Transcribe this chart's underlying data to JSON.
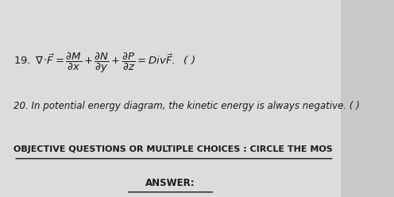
{
  "bg_color": "#c8c8c8",
  "paper_color": "#dcdcdc",
  "text_color": "#1a1a1a",
  "line1_math": "$19.\\ \\nabla\\!\\cdot\\!\\vec{F} = \\dfrac{\\partial M}{\\partial x} + \\dfrac{\\partial N}{\\partial y} + \\dfrac{\\partial P}{\\partial z} = Div\\vec{F}.$  ( )",
  "line2": "20. In potential energy diagram, the kinetic energy is always negative. ( )",
  "line3": "OBJECTIVE QUESTIONS OR MULTIPLE CHOICES : CIRCLE THE MOS",
  "line4": "ANSWER:",
  "fig_width": 4.96,
  "fig_height": 2.48,
  "dpi": 100
}
